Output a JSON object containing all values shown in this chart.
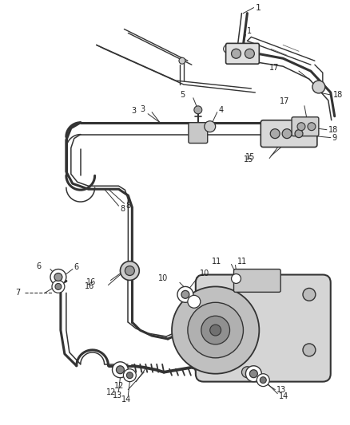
{
  "background_color": "#ffffff",
  "line_color": "#333333",
  "label_color": "#222222",
  "fig_width": 4.38,
  "fig_height": 5.33
}
